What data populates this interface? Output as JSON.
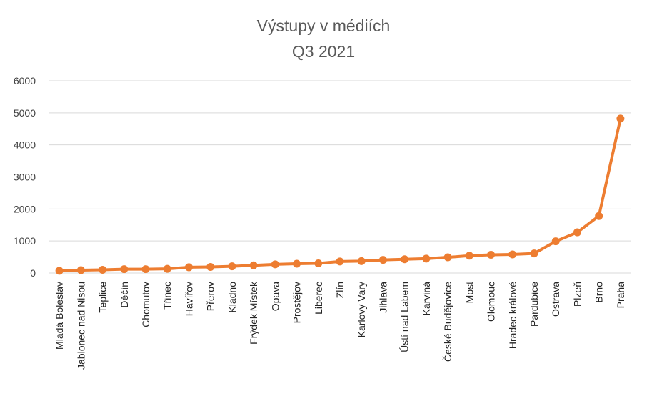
{
  "chart_data": {
    "type": "line",
    "title": "Výstupy v médiích",
    "subtitle": "Q3 2021",
    "xlabel": "",
    "ylabel": "",
    "ylim": [
      0,
      6000
    ],
    "yticks": [
      0,
      1000,
      2000,
      3000,
      4000,
      5000,
      6000
    ],
    "grid": true,
    "legend": "none",
    "categories": [
      "Mladá Boleslav",
      "Jablonec nad Nisou",
      "Teplice",
      "Děčín",
      "Chomutov",
      "Třinec",
      "Havířov",
      "Přerov",
      "Kladno",
      "Frýdek Místek",
      "Opava",
      "Prostějov",
      "Liberec",
      "Zlín",
      "Karlovy Vary",
      "Jihlava",
      "Ústí nad Labem",
      "Karviná",
      "České Budějovice",
      "Most",
      "Olomouc",
      "Hradec králové",
      "Pardubice",
      "Ostrava",
      "Plzeň",
      "Brno",
      "Praha"
    ],
    "series": [
      {
        "name": "Výstupy",
        "color": "#ED7D31",
        "values": [
          70,
          90,
          100,
          120,
          120,
          130,
          180,
          190,
          210,
          240,
          270,
          290,
          300,
          360,
          370,
          410,
          430,
          450,
          490,
          540,
          570,
          580,
          610,
          990,
          1270,
          1780,
          4820
        ]
      }
    ]
  }
}
